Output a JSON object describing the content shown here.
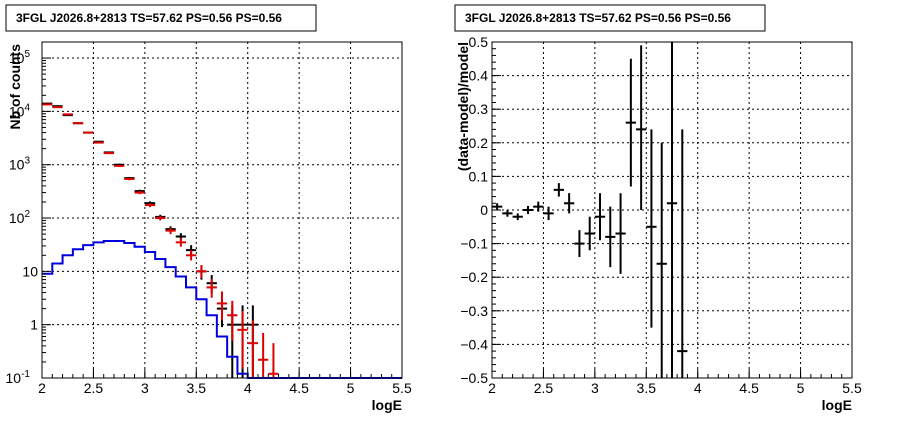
{
  "chart_data": [
    {
      "type": "scatter",
      "title": "3FGL J2026.8+2813 TS=57.62 PS=0.56 PS=0.56",
      "xlabel": "logE",
      "ylabel": "Nb of counts",
      "xlim": [
        2,
        5.5
      ],
      "ylim": [
        0.1,
        200000
      ],
      "yscale": "log",
      "grid": true,
      "x_ticks": [
        "2",
        "2.5",
        "3",
        "3.5",
        "4",
        "4.5",
        "5",
        "5.5"
      ],
      "y_ticks": [
        {
          "v": 0.1,
          "base": "10",
          "exp": "-1"
        },
        {
          "v": 1,
          "base": "1",
          "exp": ""
        },
        {
          "v": 10,
          "base": "10",
          "exp": ""
        },
        {
          "v": 100,
          "base": "10",
          "exp": "2"
        },
        {
          "v": 1000,
          "base": "10",
          "exp": "3"
        },
        {
          "v": 10000,
          "base": "10",
          "exp": "4"
        },
        {
          "v": 100000,
          "base": "10",
          "exp": "5"
        }
      ],
      "series": [
        {
          "color": "#000000",
          "points": [
            {
              "x": 2.05,
              "y": 14000,
              "lo": 13600,
              "hi": 14400
            },
            {
              "x": 2.15,
              "y": 12500,
              "lo": 12100,
              "hi": 12900
            },
            {
              "x": 2.25,
              "y": 8500,
              "lo": 8200,
              "hi": 8800
            },
            {
              "x": 2.35,
              "y": 6000,
              "lo": 5800,
              "hi": 6200
            },
            {
              "x": 2.45,
              "y": 4000,
              "lo": 3850,
              "hi": 4150
            },
            {
              "x": 2.55,
              "y": 2700,
              "lo": 2600,
              "hi": 2800
            },
            {
              "x": 2.65,
              "y": 1700,
              "lo": 1630,
              "hi": 1770
            },
            {
              "x": 2.75,
              "y": 1000,
              "lo": 960,
              "hi": 1040
            },
            {
              "x": 2.85,
              "y": 560,
              "lo": 530,
              "hi": 590
            },
            {
              "x": 2.95,
              "y": 320,
              "lo": 300,
              "hi": 340
            },
            {
              "x": 3.05,
              "y": 190,
              "lo": 175,
              "hi": 205
            },
            {
              "x": 3.15,
              "y": 105,
              "lo": 95,
              "hi": 115
            },
            {
              "x": 3.25,
              "y": 62,
              "lo": 55,
              "hi": 70
            },
            {
              "x": 3.35,
              "y": 45,
              "lo": 38,
              "hi": 52
            },
            {
              "x": 3.45,
              "y": 25,
              "lo": 20,
              "hi": 31
            },
            {
              "x": 3.55,
              "y": 10,
              "lo": 7,
              "hi": 13
            },
            {
              "x": 3.65,
              "y": 6,
              "lo": 4,
              "hi": 8.5
            },
            {
              "x": 3.75,
              "y": 2,
              "lo": 0.9,
              "hi": 3.5
            },
            {
              "x": 3.85,
              "y": 1,
              "lo": 0.1,
              "hi": 2.3
            },
            {
              "x": 3.95,
              "y": 1,
              "lo": 0.1,
              "hi": 2.3
            },
            {
              "x": 4.05,
              "y": 1,
              "lo": 0.1,
              "hi": 2.3
            }
          ]
        },
        {
          "color": "#dd0000",
          "points": [
            {
              "x": 2.05,
              "y": 13500,
              "lo": 13100,
              "hi": 13900
            },
            {
              "x": 2.15,
              "y": 12000,
              "lo": 11600,
              "hi": 12400
            },
            {
              "x": 2.25,
              "y": 8800,
              "lo": 8500,
              "hi": 9100
            },
            {
              "x": 2.35,
              "y": 6000,
              "lo": 5800,
              "hi": 6200
            },
            {
              "x": 2.45,
              "y": 4000,
              "lo": 3850,
              "hi": 4150
            },
            {
              "x": 2.55,
              "y": 2600,
              "lo": 2500,
              "hi": 2700
            },
            {
              "x": 2.65,
              "y": 1650,
              "lo": 1580,
              "hi": 1720
            },
            {
              "x": 2.75,
              "y": 950,
              "lo": 910,
              "hi": 990
            },
            {
              "x": 2.85,
              "y": 540,
              "lo": 510,
              "hi": 570
            },
            {
              "x": 2.95,
              "y": 300,
              "lo": 280,
              "hi": 320
            },
            {
              "x": 3.05,
              "y": 175,
              "lo": 160,
              "hi": 190
            },
            {
              "x": 3.15,
              "y": 100,
              "lo": 90,
              "hi": 110
            },
            {
              "x": 3.25,
              "y": 58,
              "lo": 50,
              "hi": 66
            },
            {
              "x": 3.35,
              "y": 35,
              "lo": 29,
              "hi": 42
            },
            {
              "x": 3.45,
              "y": 20,
              "lo": 16,
              "hi": 25
            },
            {
              "x": 3.55,
              "y": 10,
              "lo": 7.5,
              "hi": 13
            },
            {
              "x": 3.65,
              "y": 5,
              "lo": 3.2,
              "hi": 7.2
            },
            {
              "x": 3.75,
              "y": 2.5,
              "lo": 1.2,
              "hi": 4.2
            },
            {
              "x": 3.85,
              "y": 1.5,
              "lo": 0.5,
              "hi": 2.8
            },
            {
              "x": 3.95,
              "y": 0.8,
              "lo": 0.15,
              "hi": 1.8
            },
            {
              "x": 4.05,
              "y": 0.45,
              "lo": 0.1,
              "hi": 1.2
            },
            {
              "x": 4.15,
              "y": 0.22,
              "lo": 0.1,
              "hi": 0.7
            },
            {
              "x": 4.25,
              "y": 0.12,
              "lo": 0.1,
              "hi": 0.45
            }
          ]
        },
        {
          "color": "#0000dd",
          "type": "step",
          "edges": [
            2.0,
            2.1,
            2.2,
            2.3,
            2.4,
            2.5,
            2.6,
            2.7,
            2.8,
            2.9,
            3.0,
            3.1,
            3.2,
            3.3,
            3.4,
            3.5,
            3.6,
            3.7,
            3.8,
            3.9,
            4.0,
            4.1
          ],
          "values": [
            9,
            14,
            20,
            26,
            31,
            35,
            37,
            37,
            34,
            29,
            23,
            17,
            12,
            8,
            5,
            3,
            1.5,
            0.6,
            0.25,
            0.12,
            0.1
          ]
        }
      ]
    },
    {
      "type": "scatter",
      "title": "3FGL J2026.8+2813 TS=57.62 PS=0.56 PS=0.56",
      "xlabel": "logE",
      "ylabel": "(data-model)/model",
      "xlim": [
        2,
        5.5
      ],
      "ylim": [
        -0.5,
        0.5
      ],
      "grid": true,
      "x_ticks": [
        "2",
        "2.5",
        "3",
        "3.5",
        "4",
        "4.5",
        "5",
        "5.5"
      ],
      "y_ticks": [
        "−0.5",
        "−0.4",
        "−0.3",
        "−0.2",
        "−0.1",
        "0",
        "0.1",
        "0.2",
        "0.3",
        "0.4",
        "0.5"
      ],
      "series": [
        {
          "color": "#000000",
          "points": [
            {
              "x": 2.05,
              "y": 0.01,
              "lo": 0.0,
              "hi": 0.02
            },
            {
              "x": 2.15,
              "y": -0.01,
              "lo": -0.02,
              "hi": 0.0
            },
            {
              "x": 2.25,
              "y": -0.02,
              "lo": -0.03,
              "hi": -0.01
            },
            {
              "x": 2.35,
              "y": 0.0,
              "lo": -0.012,
              "hi": 0.012
            },
            {
              "x": 2.45,
              "y": 0.01,
              "lo": -0.005,
              "hi": 0.025
            },
            {
              "x": 2.55,
              "y": -0.01,
              "lo": -0.03,
              "hi": 0.01
            },
            {
              "x": 2.65,
              "y": 0.06,
              "lo": 0.04,
              "hi": 0.08
            },
            {
              "x": 2.75,
              "y": 0.02,
              "lo": -0.01,
              "hi": 0.05
            },
            {
              "x": 2.85,
              "y": -0.1,
              "lo": -0.14,
              "hi": -0.06
            },
            {
              "x": 2.95,
              "y": -0.07,
              "lo": -0.12,
              "hi": -0.02
            },
            {
              "x": 3.05,
              "y": -0.02,
              "lo": -0.09,
              "hi": 0.05
            },
            {
              "x": 3.15,
              "y": -0.08,
              "lo": -0.17,
              "hi": 0.01
            },
            {
              "x": 3.25,
              "y": -0.07,
              "lo": -0.19,
              "hi": 0.05
            },
            {
              "x": 3.35,
              "y": 0.26,
              "lo": 0.07,
              "hi": 0.45
            },
            {
              "x": 3.45,
              "y": 0.24,
              "lo": 0.0,
              "hi": 0.49
            },
            {
              "x": 3.55,
              "y": -0.05,
              "lo": -0.35,
              "hi": 0.24
            },
            {
              "x": 3.65,
              "y": -0.16,
              "lo": -0.5,
              "hi": 0.2
            },
            {
              "x": 3.75,
              "y": 0.02,
              "lo": -0.5,
              "hi": 0.5
            },
            {
              "x": 3.85,
              "y": -0.42,
              "lo": -0.5,
              "hi": 0.24
            }
          ]
        }
      ]
    }
  ]
}
